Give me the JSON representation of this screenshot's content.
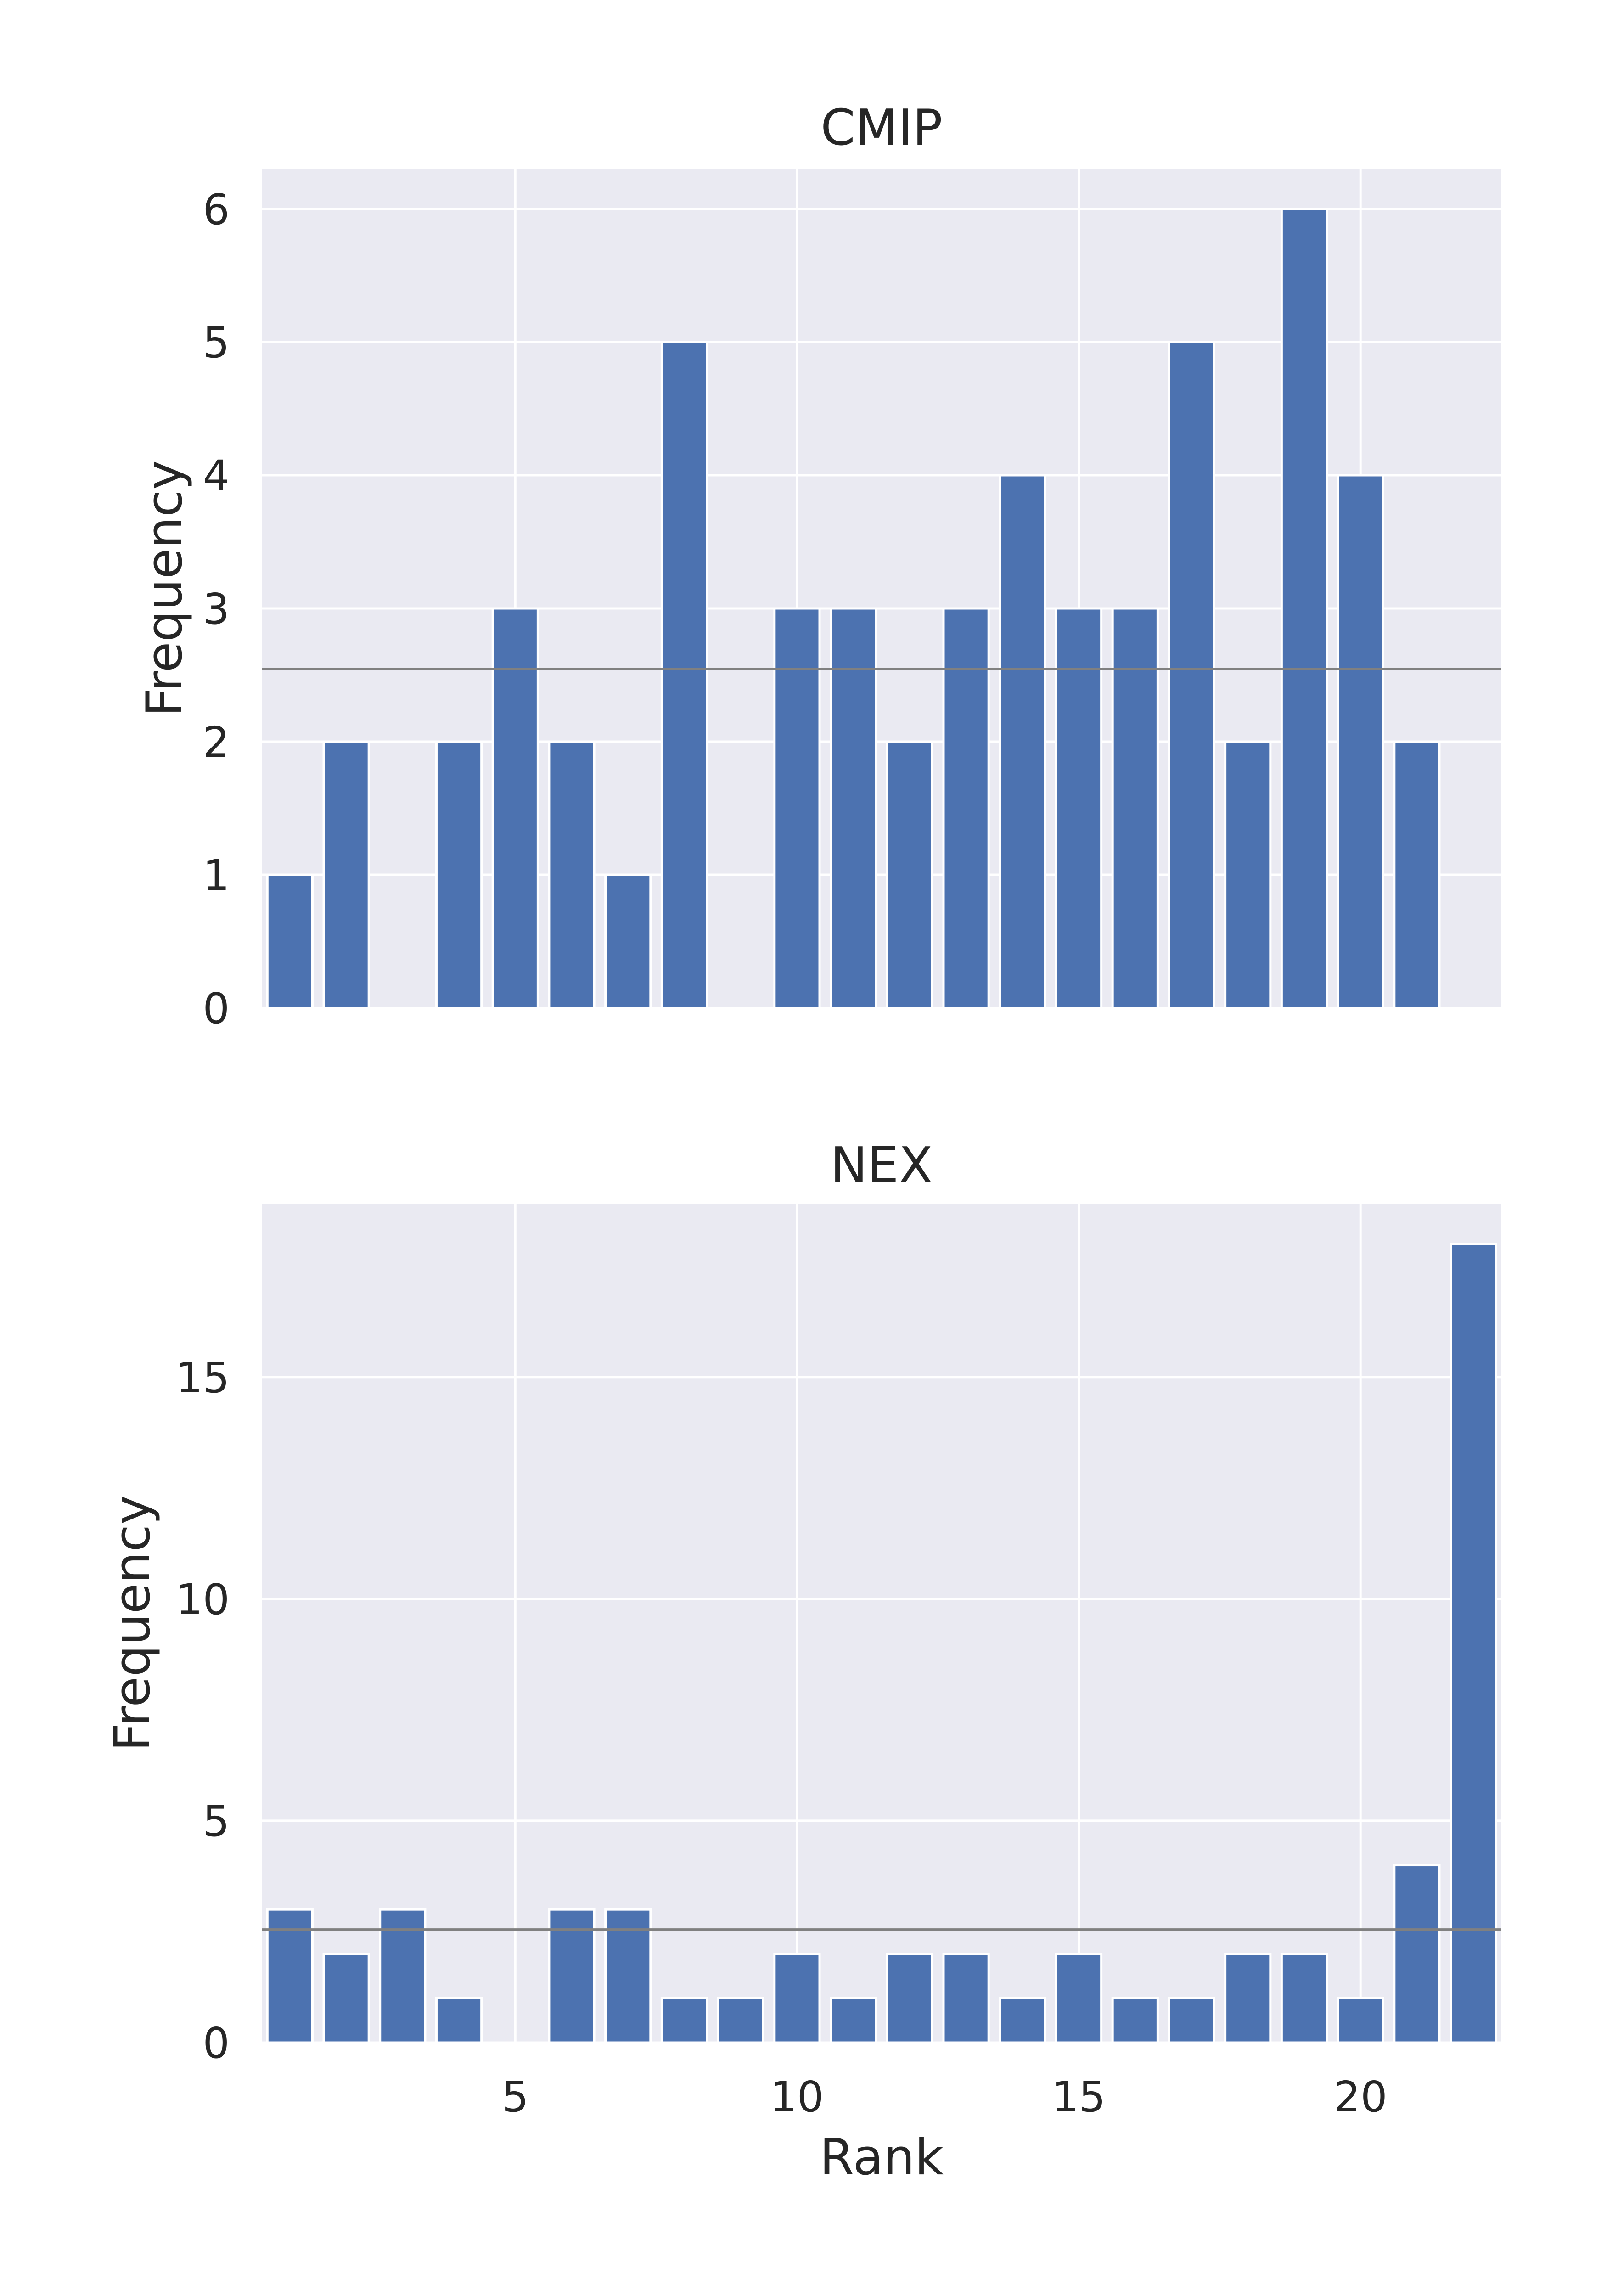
{
  "chart_data": [
    {
      "type": "bar",
      "title": "CMIP",
      "xlabel": "",
      "ylabel": "Frequency",
      "x": [
        1,
        2,
        3,
        4,
        5,
        6,
        7,
        8,
        9,
        10,
        11,
        12,
        13,
        14,
        15,
        16,
        17,
        18,
        19,
        20,
        21,
        22
      ],
      "values": [
        1,
        2,
        0,
        2,
        3,
        2,
        1,
        5,
        0,
        3,
        3,
        2,
        3,
        4,
        3,
        3,
        5,
        2,
        6,
        4,
        2,
        0
      ],
      "xlim": [
        0.5,
        22.5
      ],
      "ylim": [
        0,
        6.3
      ],
      "xticks": [
        5,
        10,
        15,
        20
      ],
      "xtick_labels_shown": false,
      "yticks": [
        0,
        1,
        2,
        3,
        4,
        5,
        6
      ],
      "reference_line": 2.545,
      "grid": true,
      "bar_color": "#4c72b0",
      "background_color": "#eaeaf2",
      "reference_line_color": "#808080"
    },
    {
      "type": "bar",
      "title": "NEX",
      "xlabel": "Rank",
      "ylabel": "Frequency",
      "x": [
        1,
        2,
        3,
        4,
        5,
        6,
        7,
        8,
        9,
        10,
        11,
        12,
        13,
        14,
        15,
        16,
        17,
        18,
        19,
        20,
        21,
        22
      ],
      "values": [
        3,
        2,
        3,
        1,
        0,
        3,
        3,
        1,
        1,
        2,
        1,
        2,
        2,
        1,
        2,
        1,
        1,
        2,
        2,
        1,
        4,
        18
      ],
      "xlim": [
        0.5,
        22.5
      ],
      "ylim": [
        0,
        18.9
      ],
      "xticks": [
        5,
        10,
        15,
        20
      ],
      "xtick_labels_shown": true,
      "yticks": [
        0,
        5,
        10,
        15
      ],
      "reference_line": 2.545,
      "grid": true,
      "bar_color": "#4c72b0",
      "background_color": "#eaeaf2",
      "reference_line_color": "#808080"
    }
  ]
}
